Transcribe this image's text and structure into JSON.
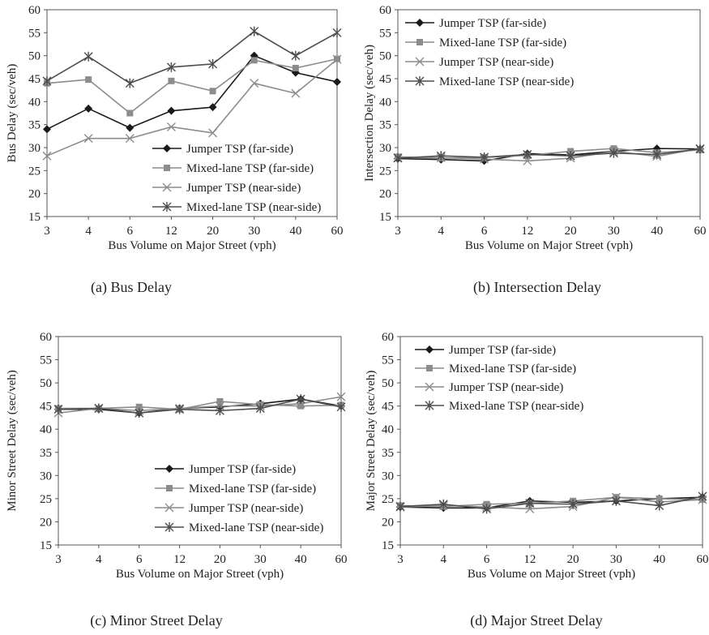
{
  "series_styles": [
    {
      "name": "Jumper TSP (far-side)",
      "color": "#1a1a1a",
      "marker": "diamond"
    },
    {
      "name": "Mixed-lane TSP (far-side)",
      "color": "#8c8c8c",
      "marker": "square"
    },
    {
      "name": "Jumper TSP (near-side)",
      "color": "#8c8c8c",
      "marker": "x"
    },
    {
      "name": "Mixed-lane TSP (near-side)",
      "color": "#4d4d4d",
      "marker": "star"
    }
  ],
  "chart_data": [
    {
      "type": "line",
      "caption": "(a) Bus Delay",
      "xlabel": "Bus Volume on Major Street (vph)",
      "ylabel": "Bus Delay (sec/veh)",
      "ylim": [
        15,
        60
      ],
      "yticks": [
        15,
        20,
        25,
        30,
        35,
        40,
        45,
        50,
        55,
        60
      ],
      "legend_position": "bottom-right",
      "categories": [
        "3",
        "4",
        "6",
        "12",
        "20",
        "30",
        "40",
        "60"
      ],
      "series": [
        {
          "name": "Jumper TSP (far-side)",
          "values": [
            34,
            38.5,
            34.3,
            38,
            38.8,
            50,
            46.3,
            44.3
          ]
        },
        {
          "name": "Mixed-lane TSP (far-side)",
          "values": [
            44,
            44.8,
            37.5,
            44.5,
            42.3,
            49,
            47.3,
            49.3
          ]
        },
        {
          "name": "Jumper TSP (near-side)",
          "values": [
            28.2,
            32,
            32,
            34.5,
            33.2,
            44,
            41.8,
            49.2
          ]
        },
        {
          "name": "Mixed-lane TSP (near-side)",
          "values": [
            44.5,
            49.8,
            44,
            47.5,
            48.2,
            55.3,
            50,
            55
          ]
        }
      ]
    },
    {
      "type": "line",
      "caption": "(b) Intersection Delay",
      "xlabel": "Bus Volume on Major Street (vph)",
      "ylabel": "Intersection Delay (sec/veh)",
      "ylim": [
        15,
        60
      ],
      "yticks": [
        15,
        20,
        25,
        30,
        35,
        40,
        45,
        50,
        55,
        60
      ],
      "legend_position": "top-left",
      "categories": [
        "3",
        "4",
        "6",
        "12",
        "20",
        "30",
        "40",
        "60"
      ],
      "series": [
        {
          "name": "Jumper TSP (far-side)",
          "values": [
            27.6,
            27.4,
            27.1,
            28.7,
            28.4,
            29.2,
            29.8,
            29.7
          ]
        },
        {
          "name": "Mixed-lane TSP (far-side)",
          "values": [
            28,
            27.7,
            27.9,
            28.3,
            29.2,
            29.8,
            28.9,
            29.5
          ]
        },
        {
          "name": "Jumper TSP (near-side)",
          "values": [
            27.8,
            27.8,
            27.5,
            27.1,
            27.7,
            29.2,
            28.1,
            29.8
          ]
        },
        {
          "name": "Mixed-lane TSP (near-side)",
          "values": [
            27.7,
            28.2,
            27.9,
            28.5,
            28.2,
            28.8,
            28.5,
            29.7
          ]
        }
      ]
    },
    {
      "type": "line",
      "caption": "(c) Minor Street Delay",
      "xlabel": "Bus Volume on Major Street (vph)",
      "ylabel": "Minor Street Delay (sec/veh)",
      "ylim": [
        15,
        60
      ],
      "yticks": [
        15,
        20,
        25,
        30,
        35,
        40,
        45,
        50,
        55,
        60
      ],
      "legend_position": "bottom-right",
      "categories": [
        "3",
        "4",
        "6",
        "12",
        "20",
        "30",
        "40",
        "60"
      ],
      "series": [
        {
          "name": "Jumper TSP (far-side)",
          "values": [
            44.3,
            44.3,
            43.5,
            44.5,
            44.8,
            45.5,
            46.5,
            45
          ]
        },
        {
          "name": "Mixed-lane TSP (far-side)",
          "values": [
            44.5,
            44.5,
            44.8,
            44.3,
            46,
            45.3,
            45,
            45.2
          ]
        },
        {
          "name": "Jumper TSP (near-side)",
          "values": [
            43.5,
            44.5,
            44,
            44.5,
            45,
            45,
            45.5,
            47
          ]
        },
        {
          "name": "Mixed-lane TSP (near-side)",
          "values": [
            44.3,
            44.5,
            43.5,
            44.3,
            44,
            44.5,
            46.5,
            44.8
          ]
        }
      ]
    },
    {
      "type": "line",
      "caption": "(d) Major Street Delay",
      "xlabel": "Bus Volume on Major Street (vph)",
      "ylabel": "Major Street Delay (sec/veh)",
      "ylim": [
        15,
        60
      ],
      "yticks": [
        15,
        20,
        25,
        30,
        35,
        40,
        45,
        50,
        55,
        60
      ],
      "legend_position": "top-left",
      "categories": [
        "3",
        "4",
        "6",
        "12",
        "20",
        "30",
        "40",
        "60"
      ],
      "series": [
        {
          "name": "Jumper TSP (far-side)",
          "values": [
            23.2,
            23,
            23,
            24.5,
            24.2,
            24.5,
            25,
            25.3
          ]
        },
        {
          "name": "Mixed-lane TSP (far-side)",
          "values": [
            23.5,
            23.3,
            23.8,
            24,
            24.5,
            25.3,
            25,
            24.8
          ]
        },
        {
          "name": "Jumper TSP (near-side)",
          "values": [
            23.2,
            23.5,
            23.2,
            22.8,
            23.3,
            25.3,
            24.3,
            24.8
          ]
        },
        {
          "name": "Mixed-lane TSP (near-side)",
          "values": [
            23.3,
            23.8,
            22.8,
            24,
            23.8,
            24.5,
            23.5,
            25.5
          ]
        }
      ]
    }
  ]
}
